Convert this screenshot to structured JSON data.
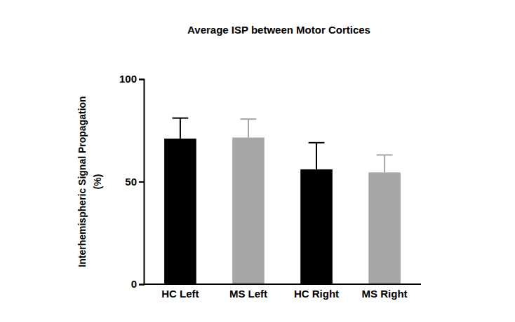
{
  "chart_data": {
    "type": "bar",
    "title": "Average ISP between Motor Cortices",
    "y_label": [
      "Interhemispheric Signal Propagation",
      "(%)"
    ],
    "categories": [
      "HC Left",
      "MS Left",
      "HC Right",
      "MS Right"
    ],
    "values": [
      71,
      71.5,
      56,
      54.5
    ],
    "errors": [
      10,
      9,
      13,
      8.5
    ],
    "colors": [
      "#000000",
      "#a6a6a6",
      "#000000",
      "#a6a6a6"
    ],
    "ylim": [
      0,
      100
    ],
    "yticks": [
      0,
      50,
      100
    ],
    "grid": false
  }
}
